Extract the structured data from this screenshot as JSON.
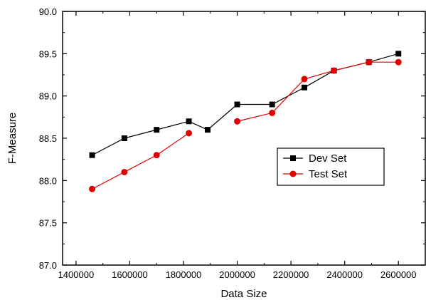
{
  "chart_data": {
    "type": "line",
    "xlabel": "Data Size",
    "ylabel": "F-Measure",
    "xlim": [
      1350000,
      2700000
    ],
    "ylim": [
      87.0,
      90.0
    ],
    "xticks": [
      1400000,
      1600000,
      1800000,
      2000000,
      2200000,
      2400000,
      2600000
    ],
    "xtick_labels": [
      "1400000",
      "1600000",
      "1800000",
      "2000000",
      "2200000",
      "2400000",
      "2600000"
    ],
    "yticks": [
      87.0,
      87.5,
      88.0,
      88.5,
      89.0,
      89.5,
      90.0
    ],
    "ytick_labels": [
      "87.0",
      "87.5",
      "88.0",
      "88.5",
      "89.0",
      "89.5",
      "90.0"
    ],
    "grid": false,
    "legend_position": "center-right",
    "series": [
      {
        "name": "Dev Set",
        "color": "#000000",
        "marker": "square",
        "x": [
          1460000,
          1580000,
          1700000,
          1820000,
          1890000,
          2000000,
          2130000,
          2250000,
          2360000,
          2490000,
          2600000
        ],
        "y": [
          88.3,
          88.5,
          88.6,
          88.7,
          88.6,
          88.9,
          88.9,
          89.1,
          89.3,
          89.4,
          89.5
        ],
        "segments": [
          [
            0,
            10
          ]
        ]
      },
      {
        "name": "Test Set",
        "color": "#e00000",
        "marker": "circle",
        "x": [
          1460000,
          1580000,
          1700000,
          1820000,
          2000000,
          2130000,
          2250000,
          2360000,
          2490000,
          2600000
        ],
        "y": [
          87.9,
          88.1,
          88.3,
          88.56,
          88.7,
          88.8,
          89.2,
          89.3,
          89.4,
          89.4
        ],
        "segments": [
          [
            0,
            3
          ],
          [
            4,
            9
          ]
        ]
      }
    ]
  }
}
